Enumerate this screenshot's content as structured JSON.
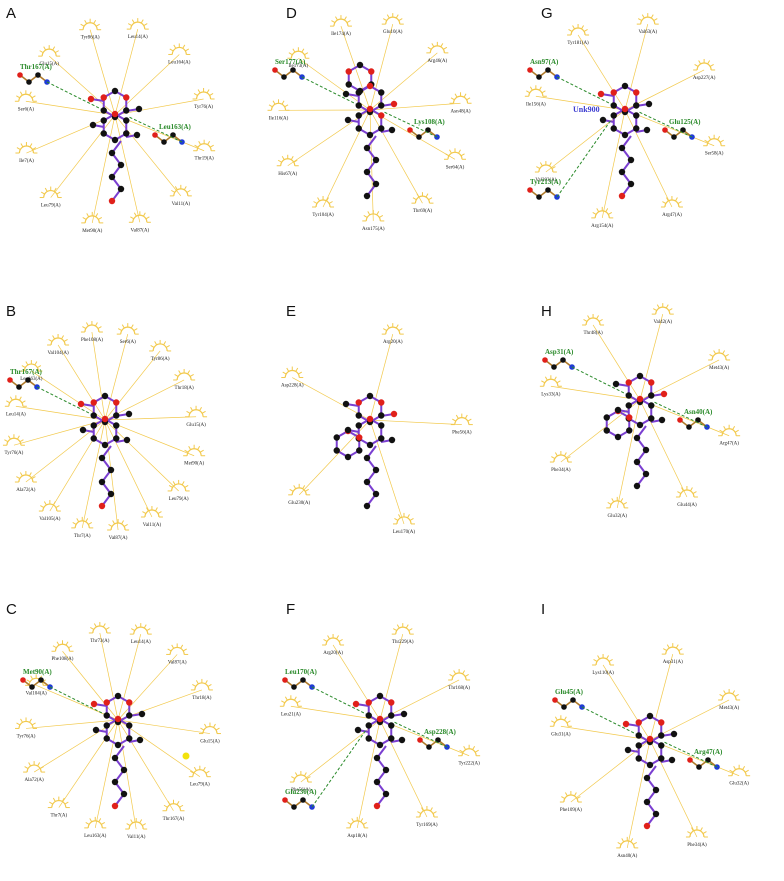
{
  "colors": {
    "ligand_bond": "#7a3fd0",
    "atom_c": "#111111",
    "atom_o": "#e0201a",
    "atom_n": "#1f3bd6",
    "atom_s": "#f2e20c",
    "hydrophobic": "#f2c94c",
    "hbond": "#2a8a2a",
    "hbond_residue_text": "#2a8a2a",
    "residue_text": "#222222"
  },
  "panels": [
    {
      "label": "A",
      "hbond_residues": [
        "Thr167(A)",
        "Leu163(A)"
      ],
      "hydrophobic_residues": [
        "Leu14(A)",
        "Leu164(A)",
        "Tyr76(A)",
        "Thr19(A)",
        "Val11(A)",
        "Val87(A)",
        "Met90(A)",
        "Leu79(A)",
        "Ile7(A)",
        "Ser6(A)",
        "Glu15(A)",
        "Tyr86(A)"
      ]
    },
    {
      "label": "B",
      "hbond_residues": [
        "Thr167(A)"
      ],
      "hydrophobic_residues": [
        "Ser6(A)",
        "Tyr86(A)",
        "Thr18(A)",
        "Glu15(A)",
        "Met90(A)",
        "Leu79(A)",
        "Val11(A)",
        "Val87(A)",
        "Thr7(A)",
        "Val105(A)",
        "Ala72(A)",
        "Tyr76(A)",
        "Leu14(A)",
        "Leu163(A)",
        "Val104(A)",
        "Phe108(A)"
      ]
    },
    {
      "label": "C",
      "hbond_residues": [
        "Met90(A)"
      ],
      "hydrophobic_residues": [
        "Leu14(A)",
        "Val87(A)",
        "Thr18(A)",
        "Glu15(A)",
        "Leu79(A)",
        "Thr167(A)",
        "Val11(A)",
        "Leu163(A)",
        "Thr7(A)",
        "Ala72(A)",
        "Tyr76(A)",
        "Val104(A)",
        "Phe108(A)",
        "Thr73(A)"
      ]
    },
    {
      "label": "D",
      "hbond_residues": [
        "Ser177(A)",
        "Lys108(A)"
      ],
      "hydrophobic_residues": [
        "Glu10(A)",
        "Arg46(A)",
        "Asn48(A)",
        "Ser64(A)",
        "Thr69(A)",
        "Asn175(A)",
        "Tyr104(A)",
        "His67(A)",
        "Ile116(A)",
        "Ile173(A)",
        "Ile174(A)"
      ]
    },
    {
      "label": "E",
      "hbond_residues": [],
      "hydrophobic_residues": [
        "Arg20(A)",
        "Phe56(A)",
        "Leu170(A)",
        "Glu230(A)",
        "Asp228(A)"
      ]
    },
    {
      "label": "F",
      "hbond_residues": [
        "Leu170(A)",
        "Asp228(A)",
        "Glu230(A)"
      ],
      "hydrophobic_residues": [
        "Thr229(A)",
        "Thr168(A)",
        "Tyr222(A)",
        "Tyr169(A)",
        "Asp18(A)",
        "Phe56(A)",
        "Leu21(A)",
        "Arg20(A)"
      ]
    },
    {
      "label": "G",
      "hbond_residues": [
        "Asn97(A)",
        "Glu125(A)",
        "Tyr213(A)"
      ],
      "unknown_ligand": "Unk900",
      "hydrophobic_residues": [
        "Val63(A)",
        "Asp227(A)",
        "Ser58(A)",
        "Arg47(A)",
        "Arg154(A)",
        "Val203(A)",
        "Ile156(A)",
        "Tyr181(A)"
      ]
    },
    {
      "label": "H",
      "hbond_residues": [
        "Asp31(A)",
        "Asn40(A)"
      ],
      "hydrophobic_residues": [
        "Val42(A)",
        "Met43(A)",
        "Arg47(A)",
        "Glu44(A)",
        "Glu32(A)",
        "Phe34(A)",
        "Lys33(A)",
        "Thr48(A)"
      ]
    },
    {
      "label": "I",
      "hbond_residues": [
        "Glu45(A)",
        "Arg47(A)"
      ],
      "hydrophobic_residues": [
        "Asp31(A)",
        "Met43(A)",
        "Glu32(A)",
        "Phe34(A)",
        "Asn40(A)",
        "Phe109(A)",
        "Glu31(A)",
        "Lys110(A)"
      ]
    }
  ]
}
